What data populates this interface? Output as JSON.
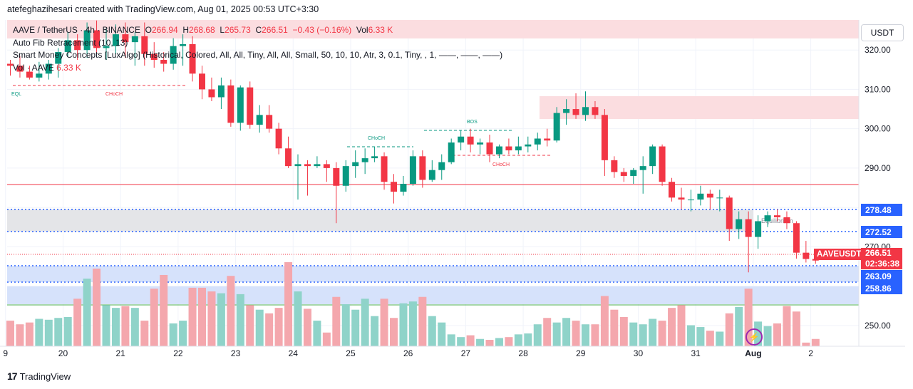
{
  "header": {
    "author_line": "atefeghazihesari created with TradingView.com, Aug 01, 2025 00:53 UTC+3:30"
  },
  "legend": {
    "symbol": "AAVE / TetherUS · 4h · BINANCE",
    "o_label": "O",
    "o_val": "266.94",
    "h_label": "H",
    "h_val": "268.68",
    "l_label": "L",
    "l_val": "265.73",
    "c_label": "C",
    "c_val": "266.51",
    "change": "−0.43 (−0.16%)",
    "vol_label": "Vol",
    "vol_val": "6.33 K",
    "indicator_fib": "Auto Fib Retracement (10, 13)",
    "indicator_smc": "Smart Money Concepts [LuxAlgo] (Historical, Colored, All, All, Tiny, All, All, Small, 50, 10, 10, Atr, 3, 0.1, Tiny, , 1, ——, ——, ——)",
    "indicator_vol": "Vol · AAVE",
    "indicator_vol_val": "6.33 K"
  },
  "currency_button": "USDT",
  "price_tags": {
    "fib1": "278.48",
    "fib2": "272.52",
    "fib3": "263.09",
    "fib4": "258.86",
    "symbol": "AAVEUSDT",
    "current": "266.51",
    "countdown": "02:36:38"
  },
  "chart_labels": {
    "eql": "EQL",
    "choch1": "CHoCH",
    "choch2": "CHoCH",
    "bos": "BOS",
    "choch3": "CHoCH",
    "equilibrium": "Equilibrium"
  },
  "footer": {
    "brand": "TradingView",
    "logo": "17"
  },
  "chart_data": {
    "type": "candlestick",
    "title": "AAVE / TetherUS · 4h · BINANCE",
    "ylabel": "USDT",
    "ylim": [
      244,
      328
    ],
    "y_ticks": [
      250,
      260,
      270,
      280,
      290,
      300,
      310,
      320
    ],
    "x_ticks": [
      {
        "label": "9",
        "idx": -0.5
      },
      {
        "label": "20",
        "idx": 5.5
      },
      {
        "label": "21",
        "idx": 11.5
      },
      {
        "label": "22",
        "idx": 17.5
      },
      {
        "label": "23",
        "idx": 23.5
      },
      {
        "label": "24",
        "idx": 29.5
      },
      {
        "label": "25",
        "idx": 35.5
      },
      {
        "label": "26",
        "idx": 41.5
      },
      {
        "label": "27",
        "idx": 47.5
      },
      {
        "label": "28",
        "idx": 53.5
      },
      {
        "label": "29",
        "idx": 59.5
      },
      {
        "label": "30",
        "idx": 65.5
      },
      {
        "label": "31",
        "idx": 71.5
      },
      {
        "label": "Aug",
        "idx": 77.5
      },
      {
        "label": "2",
        "idx": 83.5
      }
    ],
    "colors": {
      "up": "#089981",
      "down": "#f23645",
      "up_vol": "#8fd3c9",
      "down_vol": "#f4a7ad"
    },
    "candles": [
      [
        316.5,
        317.5,
        313.5,
        316.0,
        28
      ],
      [
        316.0,
        318.5,
        313.0,
        314.5,
        24
      ],
      [
        314.5,
        316.0,
        312.5,
        313.0,
        26
      ],
      [
        313.0,
        317.0,
        312.0,
        314.0,
        30
      ],
      [
        314.0,
        317.5,
        312.5,
        316.5,
        29
      ],
      [
        316.5,
        320.5,
        313.0,
        319.5,
        31
      ],
      [
        319.5,
        324.5,
        318.5,
        322.5,
        32
      ],
      [
        322.5,
        324.0,
        317.5,
        320.0,
        52
      ],
      [
        320.0,
        327.0,
        318.0,
        325.0,
        74
      ],
      [
        325.0,
        327.5,
        319.0,
        320.5,
        85
      ],
      [
        320.5,
        325.5,
        317.5,
        321.0,
        45
      ],
      [
        321.0,
        326.5,
        319.0,
        324.0,
        42
      ],
      [
        324.0,
        327.0,
        318.0,
        322.0,
        44
      ],
      [
        322.0,
        324.5,
        316.0,
        323.5,
        42
      ],
      [
        323.5,
        327.0,
        316.0,
        319.0,
        28
      ],
      [
        319.0,
        322.0,
        315.5,
        317.5,
        63
      ],
      [
        317.5,
        319.5,
        314.5,
        316.5,
        78
      ],
      [
        316.5,
        323.0,
        315.0,
        321.0,
        25
      ],
      [
        321.0,
        324.0,
        316.0,
        321.5,
        28
      ],
      [
        321.5,
        323.5,
        312.0,
        314.0,
        64
      ],
      [
        314.0,
        316.0,
        307.5,
        310.0,
        64
      ],
      [
        310.0,
        313.0,
        307.0,
        308.0,
        60
      ],
      [
        308.0,
        313.0,
        305.0,
        311.0,
        58
      ],
      [
        311.0,
        312.5,
        300.5,
        301.5,
        77
      ],
      [
        301.5,
        311.0,
        299.5,
        310.5,
        57
      ],
      [
        310.5,
        312.0,
        300.0,
        301.0,
        45
      ],
      [
        301.0,
        306.0,
        299.0,
        303.5,
        40
      ],
      [
        303.5,
        306.0,
        299.0,
        300.0,
        36
      ],
      [
        300.0,
        301.5,
        293.5,
        295.0,
        42
      ],
      [
        295.0,
        298.0,
        290.0,
        290.5,
        92
      ],
      [
        290.5,
        293.5,
        282.0,
        291.0,
        60
      ],
      [
        291.0,
        292.0,
        283.0,
        290.5,
        41
      ],
      [
        290.5,
        293.0,
        290.0,
        291.0,
        28
      ],
      [
        291.0,
        292.0,
        286.5,
        290.0,
        15
      ],
      [
        290.0,
        291.5,
        276.0,
        285.5,
        54
      ],
      [
        285.5,
        292.0,
        284.0,
        290.5,
        46
      ],
      [
        290.5,
        294.5,
        287.5,
        291.5,
        40
      ],
      [
        291.5,
        295.0,
        288.5,
        292.5,
        52
      ],
      [
        292.5,
        295.5,
        291.5,
        293.0,
        33
      ],
      [
        293.0,
        294.0,
        284.5,
        286.5,
        52
      ],
      [
        286.5,
        288.5,
        281.0,
        284.0,
        31
      ],
      [
        284.0,
        288.0,
        283.0,
        286.0,
        47
      ],
      [
        286.0,
        294.5,
        285.5,
        293.0,
        49
      ],
      [
        293.0,
        294.5,
        285.0,
        287.0,
        54
      ],
      [
        287.0,
        292.0,
        286.5,
        289.5,
        33
      ],
      [
        289.5,
        293.5,
        287.0,
        291.5,
        26
      ],
      [
        291.5,
        297.5,
        291.0,
        296.5,
        13
      ],
      [
        296.5,
        299.5,
        294.5,
        298.0,
        10
      ],
      [
        298.0,
        300.0,
        294.0,
        296.0,
        12
      ],
      [
        296.0,
        297.5,
        293.5,
        296.5,
        8
      ],
      [
        296.5,
        298.5,
        291.5,
        293.5,
        7
      ],
      [
        293.5,
        296.0,
        292.5,
        295.5,
        9
      ],
      [
        295.5,
        297.5,
        293.5,
        294.5,
        10
      ],
      [
        294.5,
        298.0,
        293.5,
        295.5,
        13
      ],
      [
        295.5,
        298.0,
        294.0,
        296.0,
        14
      ],
      [
        296.0,
        299.0,
        294.5,
        297.5,
        24
      ],
      [
        297.5,
        300.0,
        295.5,
        297.0,
        31
      ],
      [
        297.0,
        305.5,
        296.5,
        304.0,
        26
      ],
      [
        304.0,
        307.5,
        301.0,
        305.0,
        31
      ],
      [
        305.0,
        309.0,
        302.5,
        303.5,
        28
      ],
      [
        303.5,
        309.5,
        302.0,
        305.5,
        24
      ],
      [
        305.5,
        307.0,
        302.5,
        303.5,
        24
      ],
      [
        303.5,
        305.0,
        288.0,
        292.0,
        55
      ],
      [
        292.0,
        293.0,
        287.5,
        289.0,
        40
      ],
      [
        289.0,
        290.0,
        286.5,
        288.0,
        32
      ],
      [
        288.0,
        290.0,
        286.0,
        289.5,
        26
      ],
      [
        289.5,
        293.0,
        283.5,
        290.5,
        24
      ],
      [
        290.5,
        296.0,
        288.5,
        295.5,
        30
      ],
      [
        295.5,
        296.0,
        285.5,
        286.5,
        28
      ],
      [
        286.5,
        287.5,
        281.5,
        282.5,
        42
      ],
      [
        282.5,
        285.0,
        279.5,
        282.0,
        45
      ],
      [
        282.0,
        284.5,
        279.0,
        282.0,
        23
      ],
      [
        282.0,
        285.5,
        280.5,
        283.5,
        21
      ],
      [
        283.5,
        284.5,
        279.5,
        282.5,
        17
      ],
      [
        282.5,
        284.5,
        279.0,
        282.5,
        16
      ],
      [
        282.5,
        283.0,
        271.5,
        274.5,
        36
      ],
      [
        274.5,
        279.0,
        272.0,
        277.0,
        43
      ],
      [
        277.0,
        279.0,
        263.5,
        272.5,
        63
      ],
      [
        272.5,
        278.0,
        269.5,
        276.5,
        27
      ],
      [
        276.5,
        279.0,
        275.0,
        278.0,
        22
      ],
      [
        278.0,
        279.5,
        276.5,
        277.5,
        25
      ],
      [
        277.5,
        279.0,
        274.5,
        276.0,
        44
      ],
      [
        276.0,
        276.5,
        267.0,
        268.5,
        38
      ],
      [
        268.5,
        271.5,
        266.0,
        266.9,
        4
      ],
      [
        266.9,
        268.7,
        265.7,
        266.5,
        8
      ]
    ]
  }
}
